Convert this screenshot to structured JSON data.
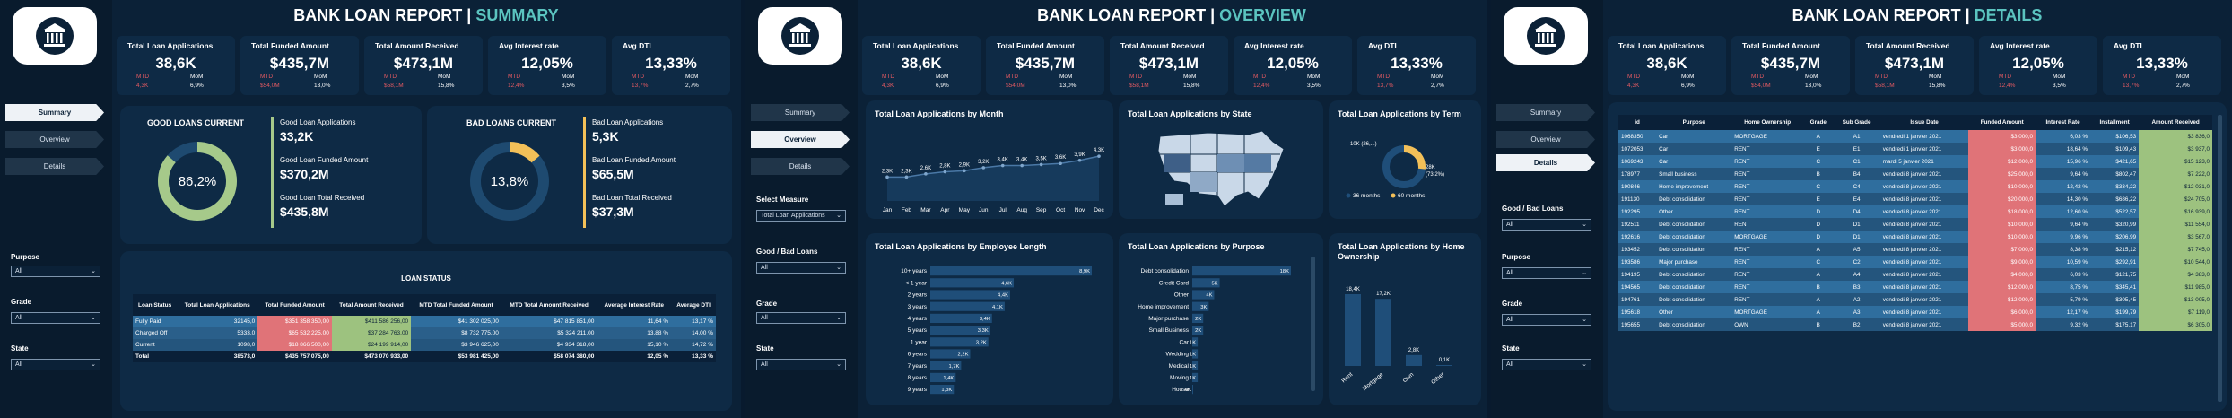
{
  "title": "BANK LOAN REPORT",
  "nav": [
    "Summary",
    "Overview",
    "Details"
  ],
  "pages": {
    "summary": {
      "subtitle": "SUMMARY"
    },
    "overview": {
      "subtitle": "OVERVIEW"
    },
    "details": {
      "subtitle": "DETAILS"
    }
  },
  "kpis": [
    {
      "title": "Total Loan Applications",
      "value": "38,6K",
      "mtd_label": "MTD",
      "mom_label": "MoM",
      "mtd": "4,3K",
      "mom": "6,9%"
    },
    {
      "title": "Total Funded Amount",
      "value": "$435,7M",
      "mtd_label": "MTD",
      "mom_label": "MoM",
      "mtd": "$54,0M",
      "mom": "13,0%"
    },
    {
      "title": "Total Amount Received",
      "value": "$473,1M",
      "mtd_label": "MTD",
      "mom_label": "MoM",
      "mtd": "$58,1M",
      "mom": "15,8%"
    },
    {
      "title": "Avg Interest rate",
      "value": "12,05%",
      "mtd_label": "MTD",
      "mom_label": "MoM",
      "mtd": "12,4%",
      "mom": "3,5%"
    },
    {
      "title": "Avg DTI",
      "value": "13,33%",
      "mtd_label": "MTD",
      "mom_label": "MoM",
      "mtd": "13,7%",
      "mom": "2,7%"
    }
  ],
  "filters": {
    "purpose": "Purpose",
    "grade": "Grade",
    "state": "State",
    "all": "All",
    "select_measure": "Select Measure",
    "measure_value": "Total Loan Applications",
    "good_bad": "Good / Bad Loans"
  },
  "good": {
    "title": "GOOD LOANS CURRENT",
    "pct": "86,2%",
    "pct_value": 86.2,
    "items": [
      {
        "label": "Good Loan Applications",
        "value": "33,2K"
      },
      {
        "label": "Good Loan Funded Amount",
        "value": "$370,2M"
      },
      {
        "label": "Good Loan Total Received",
        "value": "$435,8M"
      }
    ]
  },
  "bad": {
    "title": "BAD LOANS CURRENT",
    "pct": "13,8%",
    "pct_value": 13.8,
    "items": [
      {
        "label": "Bad Loan Applications",
        "value": "5,3K"
      },
      {
        "label": "Bad Loan Funded Amount",
        "value": "$65,5M"
      },
      {
        "label": "Bad Loan Total Received",
        "value": "$37,3M"
      }
    ]
  },
  "loan_status": {
    "title": "LOAN STATUS",
    "headers": [
      "Loan Status",
      "Total Loan Applications",
      "Total Funded Amount",
      "Total Amount Received",
      "MTD Total Funded Amount",
      "MTD Total Amount Received",
      "Average Interest Rate",
      "Average DTI"
    ],
    "rows": [
      [
        "Fully Paid",
        "32145,0",
        "$351 358 350,00",
        "$411 586 256,00",
        "$41 302 025,00",
        "$47 815 851,00",
        "11,64 %",
        "13,17 %"
      ],
      [
        "Charged Off",
        "5333,0",
        "$65 532 225,00",
        "$37 284 763,00",
        "$8 732 775,00",
        "$5 324 211,00",
        "13,88 %",
        "14,00 %"
      ],
      [
        "Current",
        "1098,0",
        "$18 866 500,00",
        "$24 199 914,00",
        "$3 946 625,00",
        "$4 934 318,00",
        "15,10 %",
        "14,72 %"
      ],
      [
        "Total",
        "38573,0",
        "$435 757 075,00",
        "$473 070 933,00",
        "$53 981 425,00",
        "$58 074 380,00",
        "12,05 %",
        "13,33 %"
      ]
    ]
  },
  "chart_data": [
    {
      "type": "line",
      "title": "Total Loan Applications by Month",
      "categories": [
        "Jan",
        "Feb",
        "Mar",
        "Apr",
        "May",
        "Jun",
        "Jul",
        "Aug",
        "Sep",
        "Oct",
        "Nov",
        "Dec"
      ],
      "values": [
        2.3,
        2.3,
        2.6,
        2.8,
        2.9,
        3.2,
        3.4,
        3.4,
        3.5,
        3.6,
        3.9,
        4.3
      ],
      "labels": [
        "2,3K",
        "2,3K",
        "2,6K",
        "2,8K",
        "2,9K",
        "3,2K",
        "3,4K",
        "3,4K",
        "3,5K",
        "3,6K",
        "3,9K",
        "4,3K"
      ]
    },
    {
      "type": "map",
      "title": "Total Loan Applications by State"
    },
    {
      "type": "pie",
      "title": "Total Loan Applications by Term",
      "slices": [
        {
          "name": "36 months",
          "value": 28.2,
          "label": "28K\n(73,2%)"
        },
        {
          "name": "60 months",
          "value": 10.3,
          "label": "10K (26,...)"
        }
      ]
    },
    {
      "type": "bar",
      "title": "Total Loan Applications by Employee Length",
      "categories": [
        "10+ years",
        "< 1 year",
        "2 years",
        "3 years",
        "4 years",
        "5 years",
        "1 year",
        "6 years",
        "7 years",
        "8 years",
        "9 years"
      ],
      "values": [
        8.9,
        4.6,
        4.4,
        4.1,
        3.4,
        3.3,
        3.2,
        2.2,
        1.7,
        1.4,
        1.3
      ],
      "labels": [
        "8,9K",
        "4,6K",
        "4,4K",
        "4,1K",
        "3,4K",
        "3,3K",
        "3,2K",
        "2,2K",
        "1,7K",
        "1,4K",
        "1,3K"
      ]
    },
    {
      "type": "bar",
      "title": "Total Loan Applications by Purpose",
      "categories": [
        "Debt consolidation",
        "Credit Card",
        "Other",
        "Home improvement",
        "Major purchase",
        "Small Business",
        "Car",
        "Wedding",
        "Medical",
        "Moving",
        "House"
      ],
      "values": [
        18,
        5,
        4,
        3,
        2,
        2,
        1,
        1,
        1,
        1,
        0
      ],
      "labels": [
        "18K",
        "5K",
        "4K",
        "3K",
        "2K",
        "2K",
        "1K",
        "1K",
        "1K",
        "1K",
        "0K"
      ]
    },
    {
      "type": "bar",
      "title": "Total Loan Applications by Home Ownership",
      "categories": [
        "Rent",
        "Mortgage",
        "Own",
        "Other"
      ],
      "values": [
        18.4,
        17.2,
        2.8,
        0.1
      ],
      "labels": [
        "18,4K",
        "17,2K",
        "2,8K",
        "0,1K"
      ]
    }
  ],
  "details": {
    "headers": [
      "id",
      "Purpose",
      "Home Ownership",
      "Grade",
      "Sub Grade",
      "Issue Date",
      "Funded Amount",
      "Interest Rate",
      "Installment",
      "Amount Received"
    ],
    "rows": [
      [
        "1068350",
        "Car",
        "MORTGAGE",
        "A",
        "A1",
        "vendredi 1 janvier 2021",
        "$3 000,0",
        "6,03 %",
        "$106,53",
        "$3 836,0"
      ],
      [
        "1072053",
        "Car",
        "RENT",
        "E",
        "E1",
        "vendredi 1 janvier 2021",
        "$3 000,0",
        "18,64 %",
        "$109,43",
        "$3 937,0"
      ],
      [
        "1069243",
        "Car",
        "RENT",
        "C",
        "C1",
        "mardi 5 janvier 2021",
        "$12 000,0",
        "15,96 %",
        "$421,65",
        "$15 123,0"
      ],
      [
        "178977",
        "Small business",
        "RENT",
        "B",
        "B4",
        "vendredi 8 janvier 2021",
        "$25 000,0",
        "9,64 %",
        "$802,47",
        "$7 222,0"
      ],
      [
        "190846",
        "Home improvement",
        "RENT",
        "C",
        "C4",
        "vendredi 8 janvier 2021",
        "$10 000,0",
        "12,42 %",
        "$334,22",
        "$12 031,0"
      ],
      [
        "191130",
        "Debt consolidation",
        "RENT",
        "E",
        "E4",
        "vendredi 8 janvier 2021",
        "$20 000,0",
        "14,30 %",
        "$686,22",
        "$24 705,0"
      ],
      [
        "192295",
        "Other",
        "RENT",
        "D",
        "D4",
        "vendredi 8 janvier 2021",
        "$18 000,0",
        "12,60 %",
        "$522,57",
        "$16 939,0"
      ],
      [
        "192511",
        "Debt consolidation",
        "RENT",
        "D",
        "D1",
        "vendredi 8 janvier 2021",
        "$10 000,0",
        "9,64 %",
        "$320,99",
        "$11 554,0"
      ],
      [
        "192616",
        "Debt consolidation",
        "MORTGAGE",
        "D",
        "D1",
        "vendredi 8 janvier 2021",
        "$10 000,0",
        "9,96 %",
        "$206,99",
        "$3 567,0"
      ],
      [
        "193452",
        "Debt consolidation",
        "RENT",
        "A",
        "A5",
        "vendredi 8 janvier 2021",
        "$7 000,0",
        "8,38 %",
        "$215,12",
        "$7 745,0"
      ],
      [
        "193586",
        "Major purchase",
        "RENT",
        "C",
        "C2",
        "vendredi 8 janvier 2021",
        "$9 000,0",
        "10,59 %",
        "$292,91",
        "$10 544,0"
      ],
      [
        "194195",
        "Debt consolidation",
        "RENT",
        "A",
        "A4",
        "vendredi 8 janvier 2021",
        "$4 000,0",
        "6,03 %",
        "$121,75",
        "$4 383,0"
      ],
      [
        "194565",
        "Debt consolidation",
        "RENT",
        "B",
        "B3",
        "vendredi 8 janvier 2021",
        "$12 000,0",
        "8,75 %",
        "$345,41",
        "$11 985,0"
      ],
      [
        "194761",
        "Debt consolidation",
        "RENT",
        "A",
        "A2",
        "vendredi 8 janvier 2021",
        "$12 000,0",
        "5,79 %",
        "$305,45",
        "$13 005,0"
      ],
      [
        "195618",
        "Other",
        "MORTGAGE",
        "A",
        "A3",
        "vendredi 8 janvier 2021",
        "$6 000,0",
        "12,17 %",
        "$199,79",
        "$7 119,0"
      ],
      [
        "195655",
        "Debt consolidation",
        "OWN",
        "B",
        "B2",
        "vendredi 8 janvier 2021",
        "$5 000,0",
        "9,32 %",
        "$175,17",
        "$6 305,0"
      ]
    ]
  },
  "colors": {
    "bg": "#0b2137",
    "card": "#0e2a45",
    "accent": "#5bc4c0",
    "good": "#a6c98a",
    "bad": "#f3c058",
    "red": "#e35a62",
    "green": "#a6c98a",
    "bar": "#1f4e79"
  }
}
